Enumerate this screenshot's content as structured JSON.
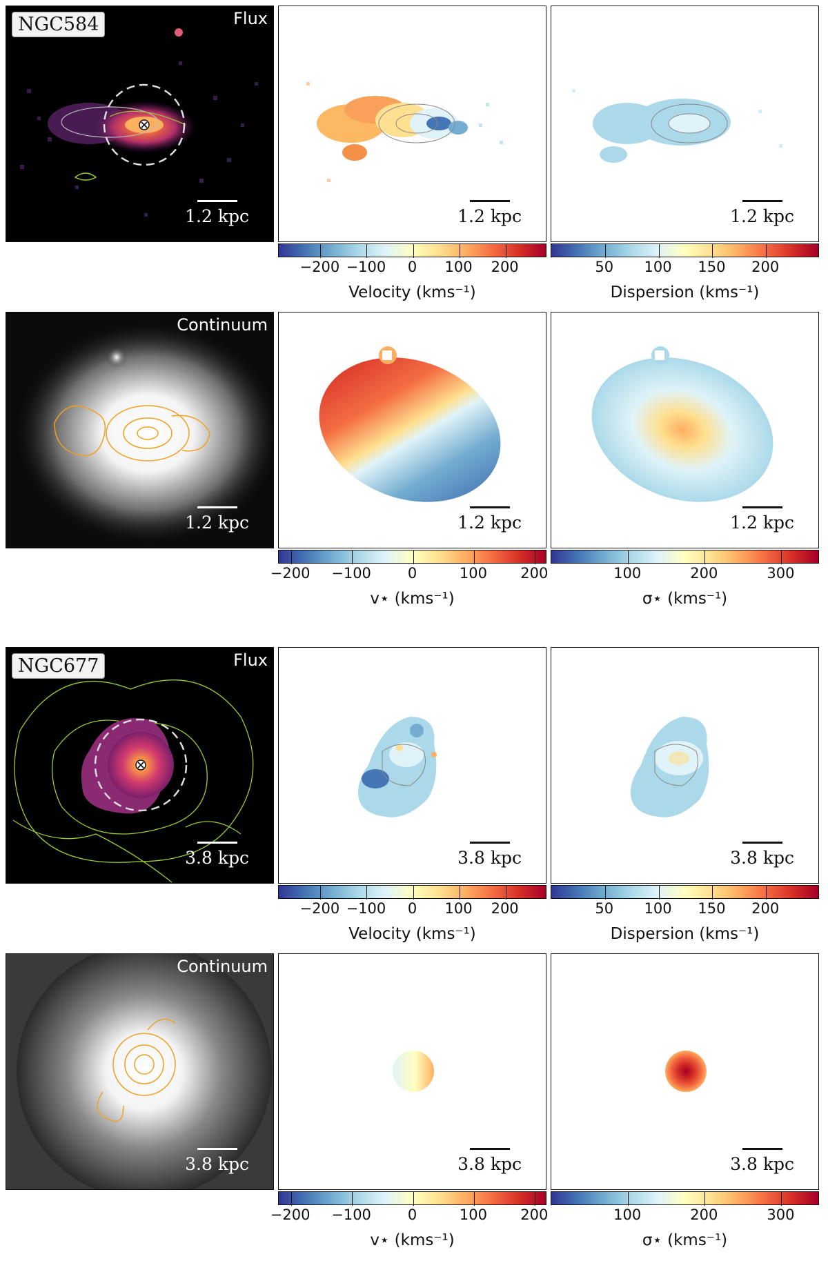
{
  "colors": {
    "flux_contour": "#9acd32",
    "continuum_contour": "#f0a020"
  },
  "rows": [
    {
      "galaxy": "NGC584",
      "flux_title": "Flux",
      "scale": "1.2 kpc",
      "vel_cbar": {
        "label": "Velocity (kms⁻¹)",
        "ticks": [
          "−200",
          "−100",
          "0",
          "100",
          "200"
        ]
      },
      "disp_cbar": {
        "label": "Dispersion (kms⁻¹)",
        "ticks": [
          "50",
          "100",
          "150",
          "200"
        ]
      }
    },
    {
      "cont_title": "Continuum",
      "scale": "1.2 kpc",
      "vel_cbar": {
        "label": "v⋆ (kms⁻¹)",
        "ticks": [
          "−200",
          "−100",
          "0",
          "100",
          "200"
        ]
      },
      "disp_cbar": {
        "label": "σ⋆ (kms⁻¹)",
        "ticks": [
          "100",
          "200",
          "300"
        ]
      }
    },
    {
      "galaxy": "NGC677",
      "flux_title": "Flux",
      "scale": "3.8 kpc",
      "vel_cbar": {
        "label": "Velocity (kms⁻¹)",
        "ticks": [
          "−200",
          "−100",
          "0",
          "100",
          "200"
        ]
      },
      "disp_cbar": {
        "label": "Dispersion (kms⁻¹)",
        "ticks": [
          "50",
          "100",
          "150",
          "200"
        ]
      }
    },
    {
      "cont_title": "Continuum",
      "scale": "3.8 kpc",
      "vel_cbar": {
        "label": "v⋆ (kms⁻¹)",
        "ticks": [
          "−200",
          "−100",
          "0",
          "100",
          "200"
        ]
      },
      "disp_cbar": {
        "label": "σ⋆ (kms⁻¹)",
        "ticks": [
          "100",
          "200",
          "300"
        ]
      }
    }
  ],
  "chart_data": [
    {
      "type": "heatmap",
      "galaxy": "NGC584",
      "map": "ionised gas velocity",
      "cbar_range": [
        -290,
        290
      ],
      "ticks": [
        -200,
        -100,
        0,
        100,
        200
      ]
    },
    {
      "type": "heatmap",
      "galaxy": "NGC584",
      "map": "ionised gas dispersion",
      "cbar_range": [
        0,
        250
      ],
      "ticks": [
        50,
        100,
        150,
        200
      ]
    },
    {
      "type": "heatmap",
      "galaxy": "NGC584",
      "map": "stellar velocity",
      "cbar_range": [
        -220,
        220
      ],
      "ticks": [
        -200,
        -100,
        0,
        100,
        200
      ]
    },
    {
      "type": "heatmap",
      "galaxy": "NGC584",
      "map": "stellar dispersion",
      "cbar_range": [
        0,
        350
      ],
      "ticks": [
        100,
        200,
        300
      ]
    },
    {
      "type": "heatmap",
      "galaxy": "NGC677",
      "map": "ionised gas velocity",
      "cbar_range": [
        -290,
        290
      ],
      "ticks": [
        -200,
        -100,
        0,
        100,
        200
      ]
    },
    {
      "type": "heatmap",
      "galaxy": "NGC677",
      "map": "ionised gas dispersion",
      "cbar_range": [
        0,
        250
      ],
      "ticks": [
        50,
        100,
        150,
        200
      ]
    },
    {
      "type": "heatmap",
      "galaxy": "NGC677",
      "map": "stellar velocity",
      "cbar_range": [
        -220,
        220
      ],
      "ticks": [
        -200,
        -100,
        0,
        100,
        200
      ]
    },
    {
      "type": "heatmap",
      "galaxy": "NGC677",
      "map": "stellar dispersion",
      "cbar_range": [
        0,
        350
      ],
      "ticks": [
        100,
        200,
        300
      ]
    }
  ]
}
